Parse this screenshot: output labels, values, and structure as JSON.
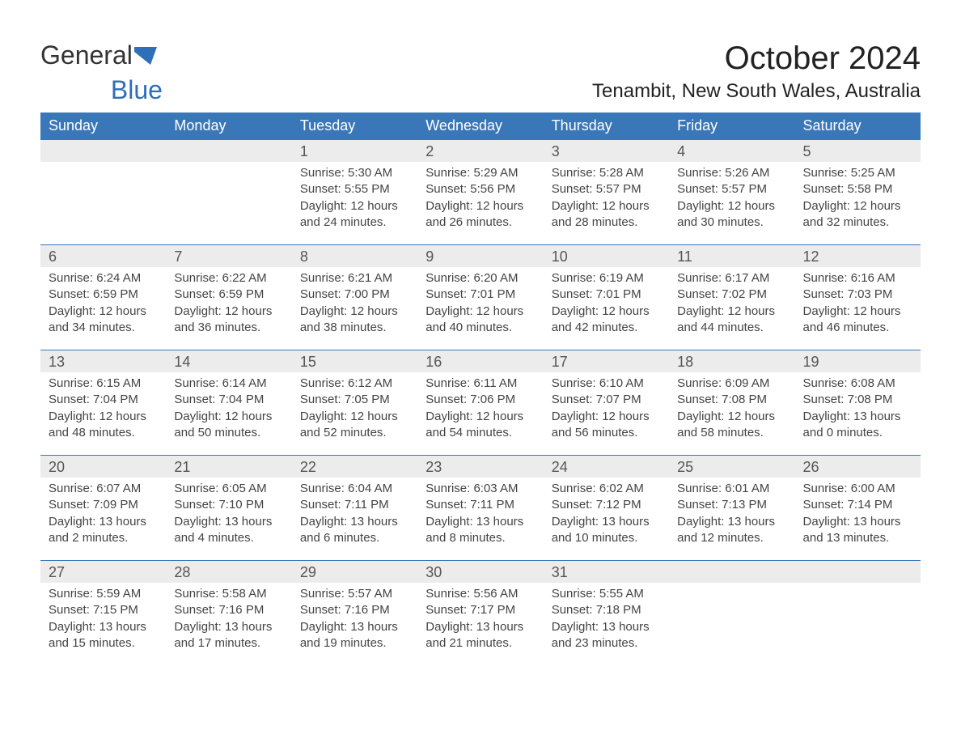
{
  "brand": {
    "part1": "General",
    "part2": "Blue"
  },
  "title": "October 2024",
  "subtitle": "Tenambit, New South Wales, Australia",
  "colors": {
    "header_bg": "#3a77b9",
    "header_text": "#ffffff",
    "daynum_bg": "#ececec",
    "rule": "#3a77b9",
    "body_text": "#444444",
    "brand_blue": "#2e6fb7"
  },
  "weekdays": [
    "Sunday",
    "Monday",
    "Tuesday",
    "Wednesday",
    "Thursday",
    "Friday",
    "Saturday"
  ],
  "weeks": [
    [
      null,
      null,
      {
        "n": "1",
        "sunrise": "5:30 AM",
        "sunset": "5:55 PM",
        "daylight": "12 hours and 24 minutes."
      },
      {
        "n": "2",
        "sunrise": "5:29 AM",
        "sunset": "5:56 PM",
        "daylight": "12 hours and 26 minutes."
      },
      {
        "n": "3",
        "sunrise": "5:28 AM",
        "sunset": "5:57 PM",
        "daylight": "12 hours and 28 minutes."
      },
      {
        "n": "4",
        "sunrise": "5:26 AM",
        "sunset": "5:57 PM",
        "daylight": "12 hours and 30 minutes."
      },
      {
        "n": "5",
        "sunrise": "5:25 AM",
        "sunset": "5:58 PM",
        "daylight": "12 hours and 32 minutes."
      }
    ],
    [
      {
        "n": "6",
        "sunrise": "6:24 AM",
        "sunset": "6:59 PM",
        "daylight": "12 hours and 34 minutes."
      },
      {
        "n": "7",
        "sunrise": "6:22 AM",
        "sunset": "6:59 PM",
        "daylight": "12 hours and 36 minutes."
      },
      {
        "n": "8",
        "sunrise": "6:21 AM",
        "sunset": "7:00 PM",
        "daylight": "12 hours and 38 minutes."
      },
      {
        "n": "9",
        "sunrise": "6:20 AM",
        "sunset": "7:01 PM",
        "daylight": "12 hours and 40 minutes."
      },
      {
        "n": "10",
        "sunrise": "6:19 AM",
        "sunset": "7:01 PM",
        "daylight": "12 hours and 42 minutes."
      },
      {
        "n": "11",
        "sunrise": "6:17 AM",
        "sunset": "7:02 PM",
        "daylight": "12 hours and 44 minutes."
      },
      {
        "n": "12",
        "sunrise": "6:16 AM",
        "sunset": "7:03 PM",
        "daylight": "12 hours and 46 minutes."
      }
    ],
    [
      {
        "n": "13",
        "sunrise": "6:15 AM",
        "sunset": "7:04 PM",
        "daylight": "12 hours and 48 minutes."
      },
      {
        "n": "14",
        "sunrise": "6:14 AM",
        "sunset": "7:04 PM",
        "daylight": "12 hours and 50 minutes."
      },
      {
        "n": "15",
        "sunrise": "6:12 AM",
        "sunset": "7:05 PM",
        "daylight": "12 hours and 52 minutes."
      },
      {
        "n": "16",
        "sunrise": "6:11 AM",
        "sunset": "7:06 PM",
        "daylight": "12 hours and 54 minutes."
      },
      {
        "n": "17",
        "sunrise": "6:10 AM",
        "sunset": "7:07 PM",
        "daylight": "12 hours and 56 minutes."
      },
      {
        "n": "18",
        "sunrise": "6:09 AM",
        "sunset": "7:08 PM",
        "daylight": "12 hours and 58 minutes."
      },
      {
        "n": "19",
        "sunrise": "6:08 AM",
        "sunset": "7:08 PM",
        "daylight": "13 hours and 0 minutes."
      }
    ],
    [
      {
        "n": "20",
        "sunrise": "6:07 AM",
        "sunset": "7:09 PM",
        "daylight": "13 hours and 2 minutes."
      },
      {
        "n": "21",
        "sunrise": "6:05 AM",
        "sunset": "7:10 PM",
        "daylight": "13 hours and 4 minutes."
      },
      {
        "n": "22",
        "sunrise": "6:04 AM",
        "sunset": "7:11 PM",
        "daylight": "13 hours and 6 minutes."
      },
      {
        "n": "23",
        "sunrise": "6:03 AM",
        "sunset": "7:11 PM",
        "daylight": "13 hours and 8 minutes."
      },
      {
        "n": "24",
        "sunrise": "6:02 AM",
        "sunset": "7:12 PM",
        "daylight": "13 hours and 10 minutes."
      },
      {
        "n": "25",
        "sunrise": "6:01 AM",
        "sunset": "7:13 PM",
        "daylight": "13 hours and 12 minutes."
      },
      {
        "n": "26",
        "sunrise": "6:00 AM",
        "sunset": "7:14 PM",
        "daylight": "13 hours and 13 minutes."
      }
    ],
    [
      {
        "n": "27",
        "sunrise": "5:59 AM",
        "sunset": "7:15 PM",
        "daylight": "13 hours and 15 minutes."
      },
      {
        "n": "28",
        "sunrise": "5:58 AM",
        "sunset": "7:16 PM",
        "daylight": "13 hours and 17 minutes."
      },
      {
        "n": "29",
        "sunrise": "5:57 AM",
        "sunset": "7:16 PM",
        "daylight": "13 hours and 19 minutes."
      },
      {
        "n": "30",
        "sunrise": "5:56 AM",
        "sunset": "7:17 PM",
        "daylight": "13 hours and 21 minutes."
      },
      {
        "n": "31",
        "sunrise": "5:55 AM",
        "sunset": "7:18 PM",
        "daylight": "13 hours and 23 minutes."
      },
      null,
      null
    ]
  ],
  "labels": {
    "sunrise_prefix": "Sunrise: ",
    "sunset_prefix": "Sunset: ",
    "daylight_prefix": "Daylight: "
  }
}
